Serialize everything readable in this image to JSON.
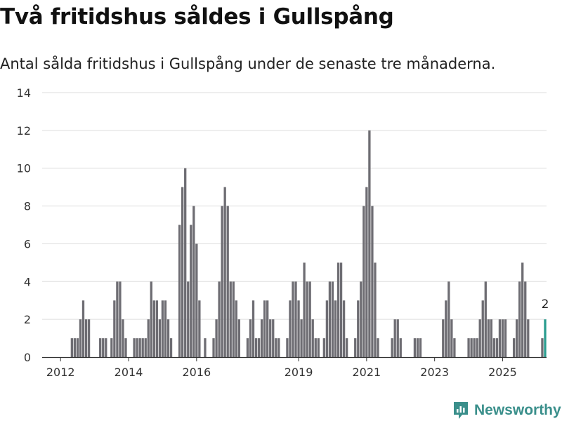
{
  "title": "Två fritidshus såldes i Gullspång",
  "subtitle": "Antal sålda fritidshus i Gullspång under de senaste tre månaderna.",
  "brand": {
    "name": "Newsworthy",
    "color": "#3a8f8b"
  },
  "colors": {
    "bar": "#6e6d73",
    "highlight": "#2a9d8f",
    "grid": "#dddddd",
    "axis": "#333333"
  },
  "chart_data": {
    "type": "bar",
    "start_period": "2012-01",
    "period": "month",
    "values": [
      0,
      0,
      0,
      0,
      0,
      0,
      0,
      0,
      0,
      0,
      1,
      1,
      1,
      2,
      3,
      2,
      2,
      0,
      0,
      0,
      1,
      1,
      1,
      0,
      1,
      3,
      4,
      4,
      2,
      1,
      0,
      0,
      1,
      1,
      1,
      1,
      1,
      2,
      4,
      3,
      3,
      2,
      3,
      3,
      2,
      1,
      0,
      0,
      7,
      9,
      10,
      4,
      7,
      8,
      6,
      3,
      0,
      1,
      0,
      0,
      1,
      2,
      4,
      8,
      9,
      8,
      4,
      4,
      3,
      2,
      0,
      0,
      1,
      2,
      3,
      1,
      1,
      2,
      3,
      3,
      2,
      2,
      1,
      1,
      0,
      0,
      1,
      3,
      4,
      4,
      3,
      2,
      5,
      4,
      4,
      2,
      1,
      1,
      0,
      1,
      3,
      4,
      4,
      3,
      5,
      5,
      3,
      1,
      0,
      0,
      1,
      3,
      4,
      8,
      9,
      12,
      8,
      5,
      1,
      0,
      0,
      0,
      0,
      1,
      2,
      2,
      1,
      0,
      0,
      0,
      0,
      1,
      1,
      1,
      0,
      0,
      0,
      0,
      0,
      0,
      0,
      2,
      3,
      4,
      2,
      1,
      0,
      0,
      0,
      0,
      1,
      1,
      1,
      1,
      2,
      3,
      4,
      2,
      2,
      1,
      1,
      2,
      2,
      2,
      0,
      0,
      1,
      2,
      4,
      5,
      4,
      2,
      0,
      0,
      0,
      0,
      1,
      2
    ],
    "highlight_last": true,
    "last_value_label": "2",
    "ylim": [
      0,
      14
    ],
    "yticks": [
      0,
      2,
      4,
      6,
      8,
      10,
      12,
      14
    ],
    "xticks": [
      {
        "label": "2012",
        "period": "2012-07"
      },
      {
        "label": "2014",
        "period": "2014-07"
      },
      {
        "label": "2016",
        "period": "2016-07"
      },
      {
        "label": "2019",
        "period": "2019-07"
      },
      {
        "label": "2021",
        "period": "2021-07"
      },
      {
        "label": "2023",
        "period": "2023-07"
      },
      {
        "label": "2025",
        "period": "2025-07"
      }
    ],
    "grid": true,
    "xlabel": "",
    "ylabel": ""
  }
}
